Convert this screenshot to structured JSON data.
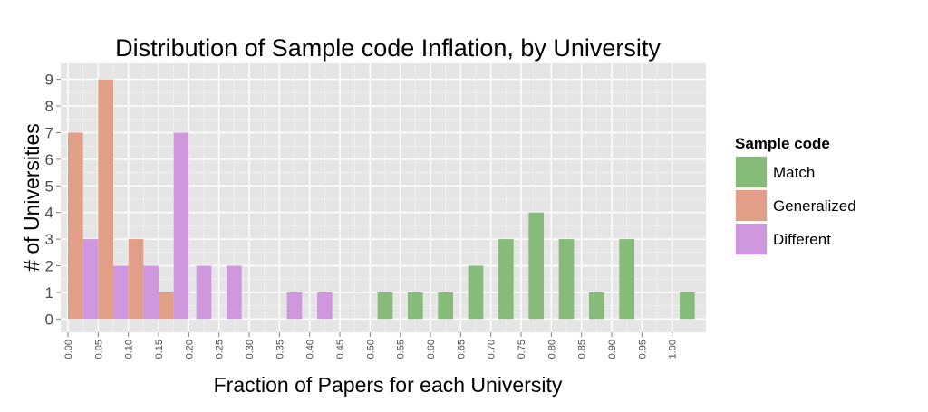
{
  "chart_data": {
    "type": "bar",
    "title": "Distribution of Sample code Inflation, by University",
    "xlabel": "Fraction of Papers for each University",
    "ylabel": "# of Universities",
    "x_ticks": [
      "0.00",
      "0.05",
      "0.10",
      "0.15",
      "0.20",
      "0.25",
      "0.30",
      "0.35",
      "0.40",
      "0.45",
      "0.50",
      "0.55",
      "0.60",
      "0.65",
      "0.70",
      "0.75",
      "0.80",
      "0.85",
      "0.90",
      "0.95",
      "1.00"
    ],
    "y_ticks": [
      "0",
      "1",
      "2",
      "3",
      "4",
      "5",
      "6",
      "7",
      "8",
      "9"
    ],
    "xlim": [
      -0.012,
      1.056
    ],
    "ylim": [
      -0.5,
      9.6
    ],
    "bin_width": 0.05,
    "grid": true,
    "legend": {
      "title": "Sample code",
      "placement": "right"
    },
    "colors": {
      "Match": "#86bb7a",
      "Generalized": "#e09f86",
      "Different": "#cf97dd",
      "panel": "#e5e5e5",
      "grid_major": "#ffffff",
      "grid_minor": "#f2f2f2"
    },
    "series": [
      {
        "name": "Match",
        "points": [
          [
            0.5,
            1
          ],
          [
            0.55,
            1
          ],
          [
            0.6,
            1
          ],
          [
            0.65,
            2
          ],
          [
            0.7,
            3
          ],
          [
            0.75,
            4
          ],
          [
            0.8,
            3
          ],
          [
            0.85,
            1
          ],
          [
            0.9,
            3
          ],
          [
            1.0,
            1
          ]
        ]
      },
      {
        "name": "Generalized",
        "points": [
          [
            0.0,
            7
          ],
          [
            0.05,
            9
          ],
          [
            0.1,
            3
          ],
          [
            0.15,
            1
          ]
        ]
      },
      {
        "name": "Different",
        "points": [
          [
            0.0,
            3
          ],
          [
            0.05,
            2
          ],
          [
            0.1,
            2
          ],
          [
            0.15,
            7
          ],
          [
            0.2,
            2
          ],
          [
            0.25,
            2
          ],
          [
            0.35,
            1
          ],
          [
            0.4,
            1
          ]
        ]
      }
    ]
  }
}
